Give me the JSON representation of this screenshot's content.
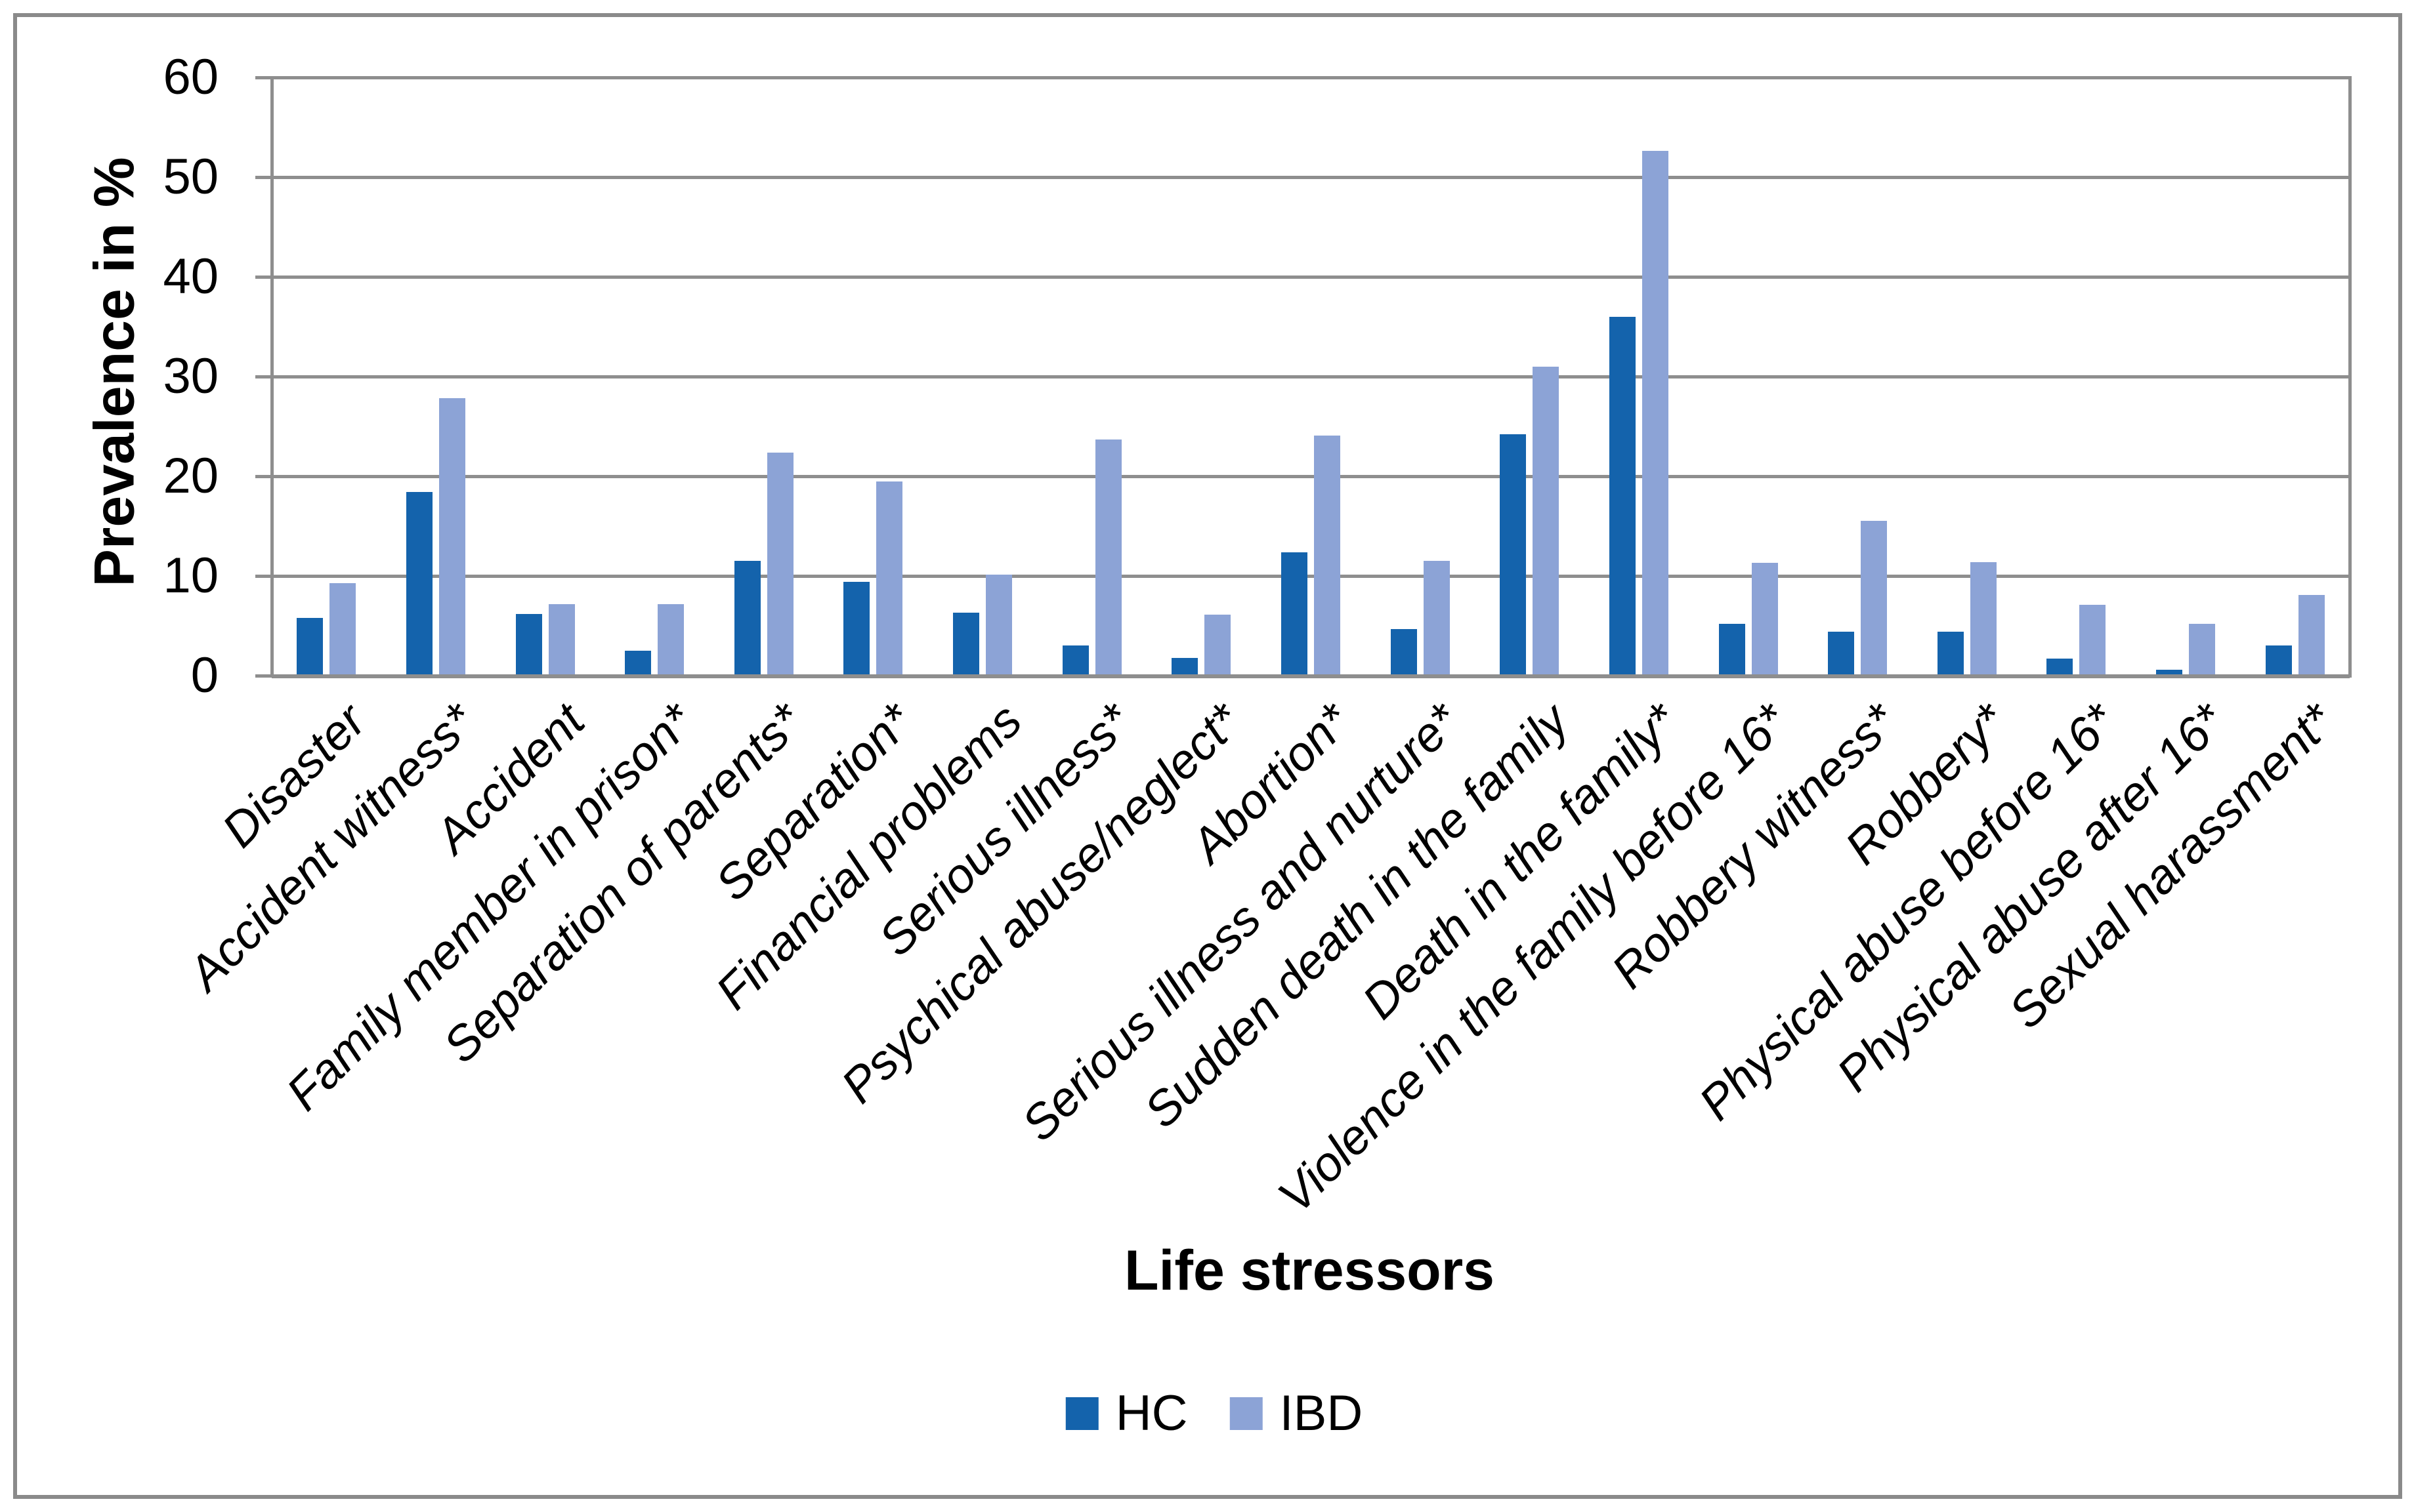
{
  "chart_data": {
    "type": "bar",
    "title": "",
    "xlabel": "Life stressors",
    "ylabel": "Prevalence in %",
    "ylim": [
      0,
      60
    ],
    "yticks": [
      0,
      10,
      20,
      30,
      40,
      50,
      60
    ],
    "grid": true,
    "legend_position": "bottom-center",
    "categories": [
      "Disaster",
      "Accident witness*",
      "Accident",
      "Family member  in prison*",
      "Separation of parents*",
      "Separation*",
      "Financial problems",
      "Serious illness*",
      "Psychical abuse/neglect*",
      "Abortion*",
      "Serious illness and nurture*",
      "Sudden death in the family",
      "Death in the family*",
      "Violence in the family before 16*",
      "Robbery witness*",
      "Robbery*",
      "Physical abuse before 16*",
      "Physical abuse after 16*",
      "Sexual harassment*"
    ],
    "series": [
      {
        "name": "HC",
        "color": "#1463AC",
        "values": [
          5.8,
          18.4,
          6.2,
          2.5,
          11.5,
          9.4,
          6.3,
          3.0,
          1.8,
          12.4,
          4.7,
          24.2,
          36.0,
          5.2,
          4.4,
          4.4,
          1.7,
          0.6,
          3.0
        ]
      },
      {
        "name": "IBD",
        "color": "#8CA3D6",
        "values": [
          9.3,
          27.8,
          7.2,
          7.2,
          22.4,
          19.5,
          10.1,
          23.7,
          6.1,
          24.1,
          11.5,
          31.0,
          52.6,
          11.3,
          15.5,
          11.4,
          7.1,
          5.2,
          8.1
        ]
      }
    ]
  },
  "colors": {
    "gridline": "#8E8E8E",
    "axis_line": "#8E8E8E",
    "figure_border": "#8A8A8A",
    "text": "#000000",
    "background": "#FFFFFF"
  }
}
